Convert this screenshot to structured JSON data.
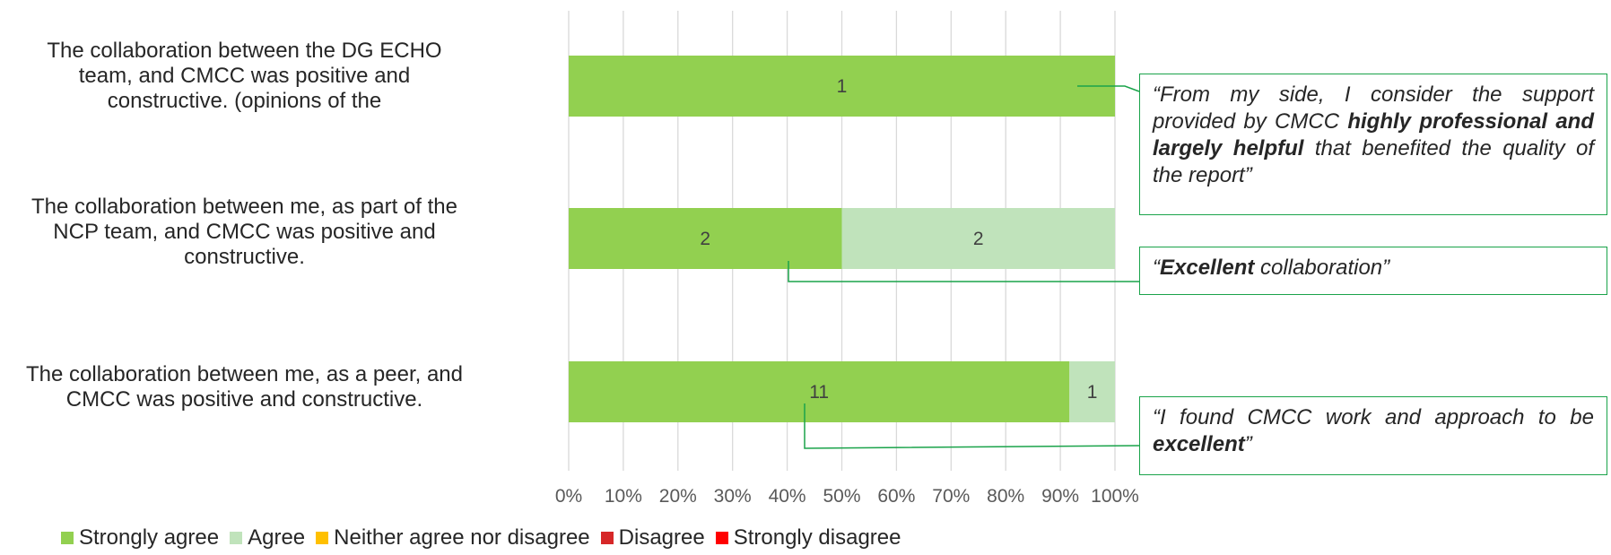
{
  "chart_data": {
    "type": "bar",
    "orientation": "horizontal",
    "stacked": "percent",
    "categories": [
      "The collaboration between the DG ECHO team, and CMCC was positive and constructive. (opinions of the",
      "The collaboration between me, as part of the NCP team, and CMCC was positive and constructive.",
      "The collaboration between me, as a peer, and CMCC was positive and constructive."
    ],
    "series": [
      {
        "name": "Strongly agree",
        "color": "#92d050",
        "values": [
          1,
          2,
          11
        ]
      },
      {
        "name": "Agree",
        "color": "#c0e3bb",
        "values": [
          0,
          2,
          1
        ]
      },
      {
        "name": "Neither agree nor disagree",
        "color": "#ffc000",
        "values": [
          0,
          0,
          0
        ]
      },
      {
        "name": "Disagree",
        "color": "#d62728",
        "values": [
          0,
          0,
          0
        ]
      },
      {
        "name": "Strongly disagree",
        "color": "#ff0000",
        "values": [
          0,
          0,
          0
        ]
      }
    ],
    "xlim": [
      0,
      100
    ],
    "xticks": [
      "0%",
      "10%",
      "20%",
      "30%",
      "40%",
      "50%",
      "60%",
      "70%",
      "80%",
      "90%",
      "100%"
    ],
    "grid": true,
    "legend_position": "bottom"
  },
  "category_lines": [
    [
      "The collaboration between the DG ECHO",
      "team, and CMCC was positive and",
      "constructive. (opinions of the"
    ],
    [
      "The collaboration between me, as part of the",
      "NCP team, and CMCC was positive and",
      "constructive."
    ],
    [
      "The collaboration between me, as a peer, and",
      "CMCC was positive and constructive."
    ]
  ],
  "callouts": {
    "one": {
      "open": "“From my side, I consider the support provided by CMCC ",
      "bold": "highly professional and largely helpful",
      "close": " that benefited the quality of the report”"
    },
    "two": {
      "open": "“",
      "bold": "Excellent",
      "close": " collaboration”"
    },
    "three": {
      "open": "“I found CMCC work and approach to be ",
      "bold": "excellent",
      "close": "”"
    }
  },
  "colors": {
    "callout_border": "#1aa34a",
    "grid": "#d9d9d9"
  }
}
